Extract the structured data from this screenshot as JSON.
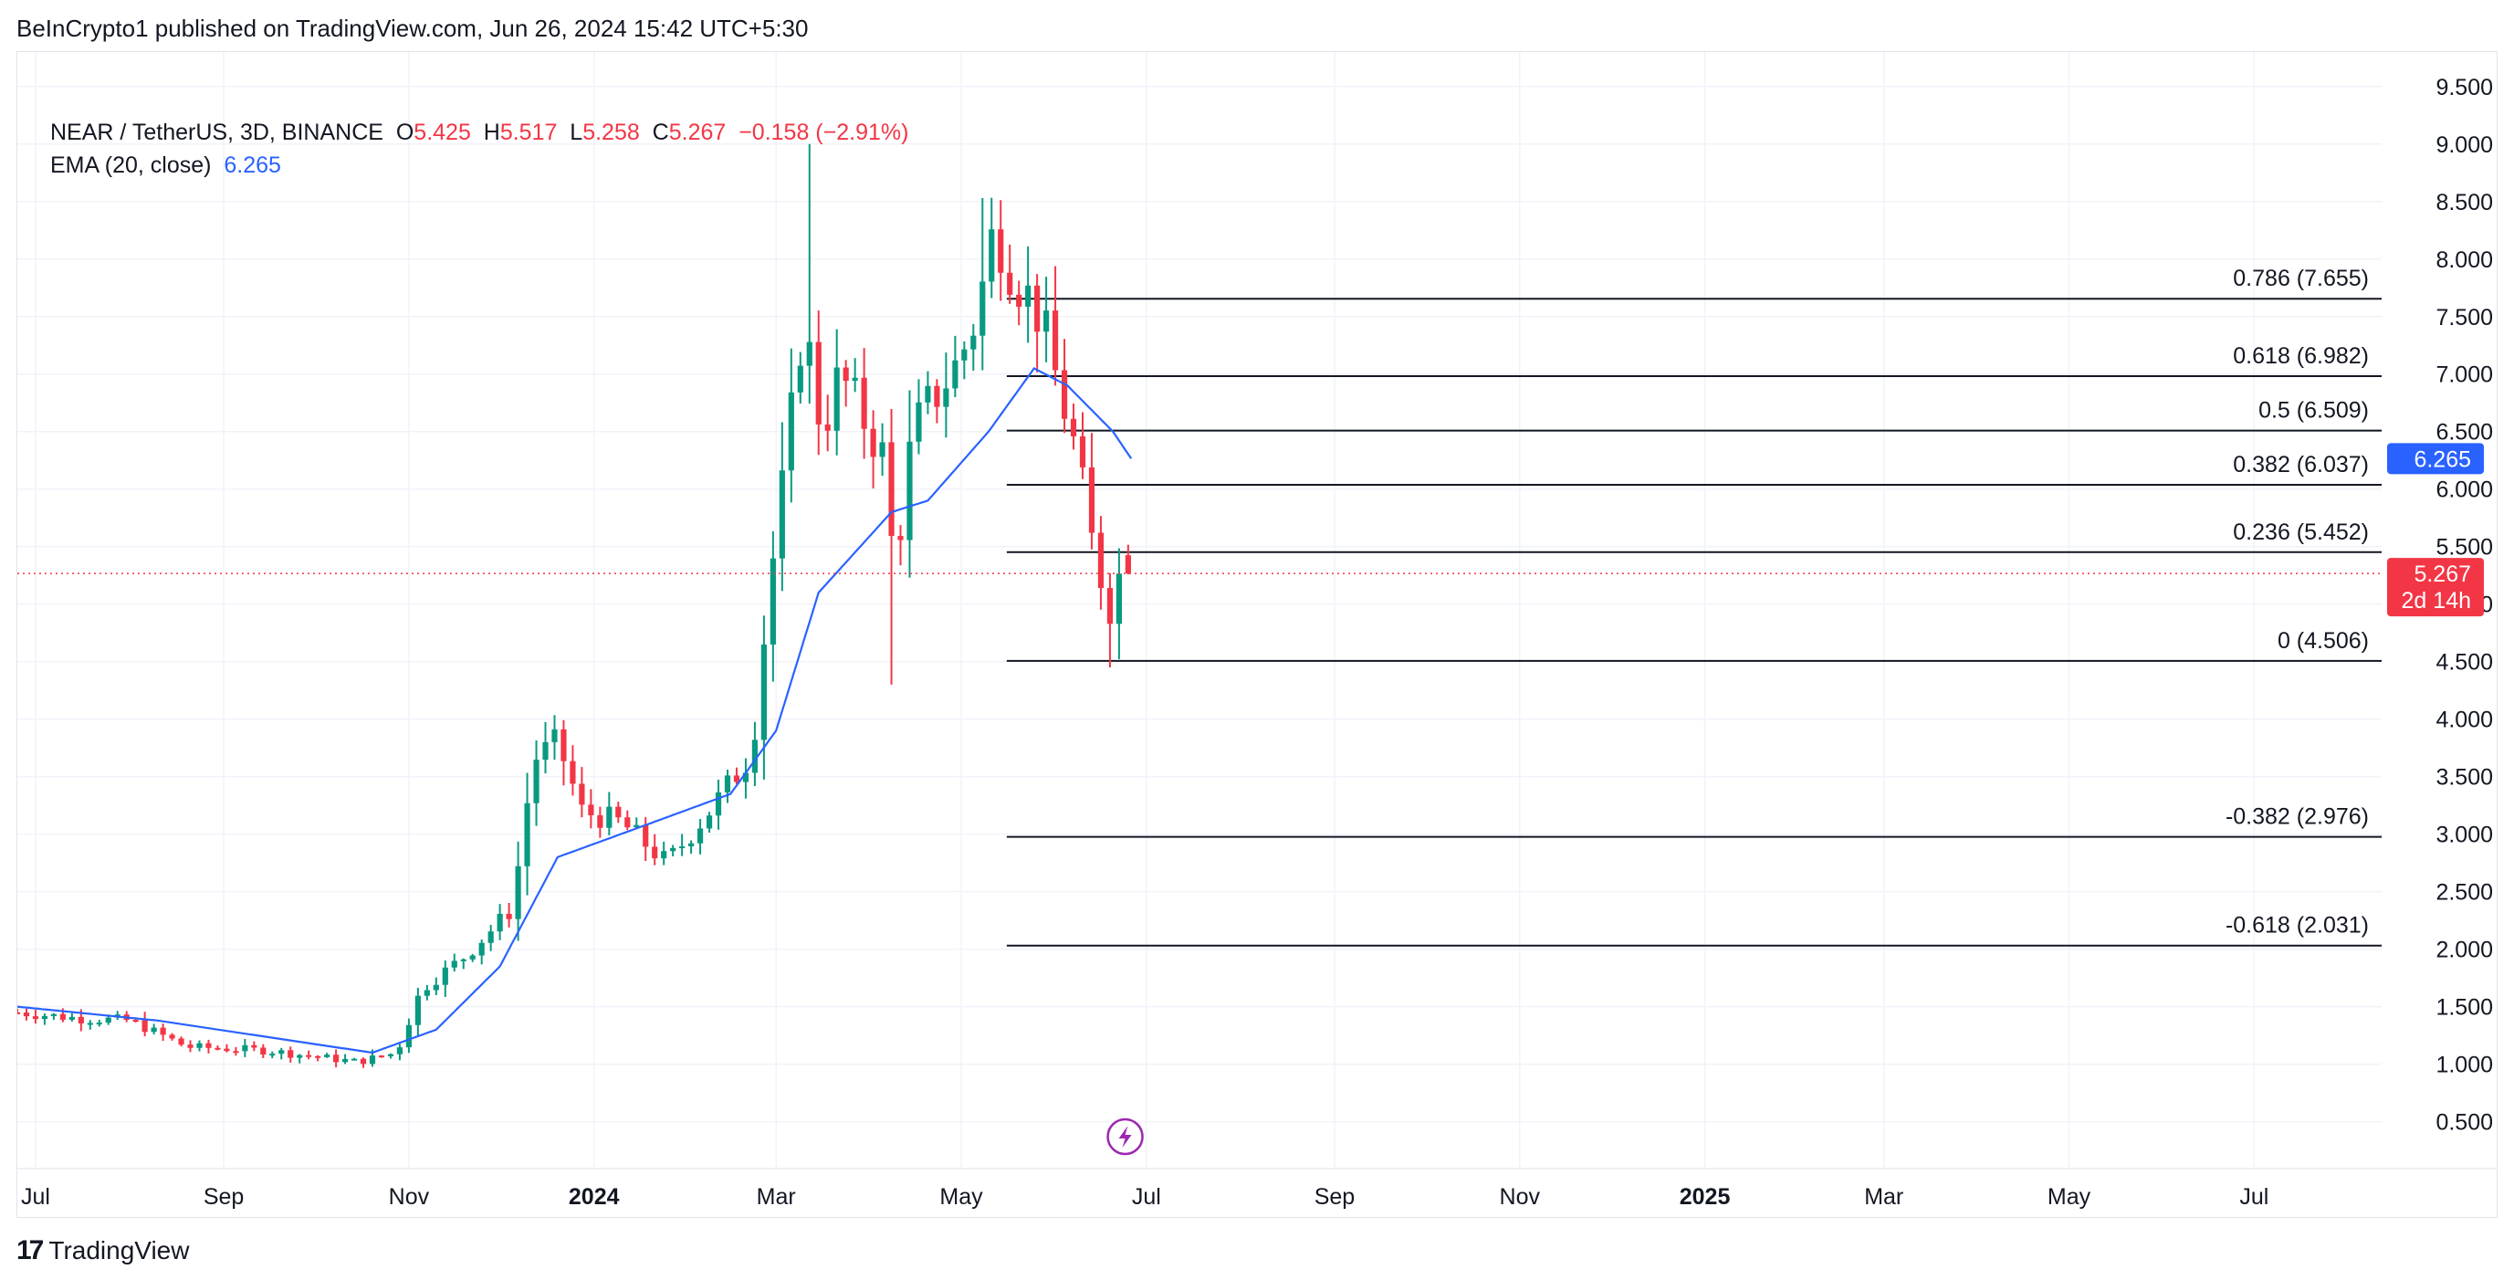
{
  "publisher_line": "BeInCrypto1 published on TradingView.com, Jun 26, 2024 15:42 UTC+5:30",
  "footer": {
    "logo_glyph": "17",
    "brand": "TradingView"
  },
  "legend": {
    "symbol": "NEAR / TetherUS, 3D, BINANCE",
    "o_label": "O",
    "o_value": "5.425",
    "h_label": "H",
    "h_value": "5.517",
    "l_label": "L",
    "l_value": "5.258",
    "c_label": "C",
    "c_value": "5.267",
    "change": "−0.158 (−2.91%)",
    "ema_label": "EMA (20, close)",
    "ema_value": "6.265"
  },
  "colors": {
    "up": "#089981",
    "down": "#f23645",
    "ema": "#2962ff",
    "fib": "#131722",
    "grid": "#f0f3fa",
    "axis_text": "#131722",
    "price_line": "#f23645",
    "event_icon": "#9c27b0"
  },
  "icons": {
    "event": "lightning-bolt-icon"
  },
  "chart_data": {
    "type": "candlestick",
    "ylim": [
      0.1,
      9.8
    ],
    "y_ticks": [
      "0.500",
      "1.000",
      "1.500",
      "2.000",
      "2.500",
      "3.000",
      "3.500",
      "4.000",
      "4.500",
      "5.000",
      "5.500",
      "6.000",
      "6.500",
      "7.000",
      "7.500",
      "8.000",
      "8.500",
      "9.000",
      "9.500"
    ],
    "x_ticks": [
      {
        "label": "Jul",
        "date": "2023-07-01",
        "bold": false
      },
      {
        "label": "Sep",
        "date": "2023-09-01",
        "bold": false
      },
      {
        "label": "Nov",
        "date": "2023-11-01",
        "bold": false
      },
      {
        "label": "2024",
        "date": "2024-01-01",
        "bold": true
      },
      {
        "label": "Mar",
        "date": "2024-03-01",
        "bold": false
      },
      {
        "label": "May",
        "date": "2024-05-01",
        "bold": false
      },
      {
        "label": "Jul",
        "date": "2024-07-01",
        "bold": false
      },
      {
        "label": "Sep",
        "date": "2024-09-01",
        "bold": false
      },
      {
        "label": "Nov",
        "date": "2024-11-01",
        "bold": false
      },
      {
        "label": "2025",
        "date": "2025-01-01",
        "bold": true
      },
      {
        "label": "Mar",
        "date": "2025-03-01",
        "bold": false
      },
      {
        "label": "May",
        "date": "2025-05-01",
        "bold": false
      },
      {
        "label": "Jul",
        "date": "2025-07-01",
        "bold": false
      }
    ],
    "x_range": [
      "2023-06-25",
      "2025-08-12"
    ],
    "candle_interval_days": 3,
    "candles_start": "2023-06-25",
    "close_anchors": [
      [
        "2023-06-25",
        1.45
      ],
      [
        "2023-07-15",
        1.4
      ],
      [
        "2023-08-01",
        1.38
      ],
      [
        "2023-08-20",
        1.15
      ],
      [
        "2023-09-15",
        1.12
      ],
      [
        "2023-10-15",
        1.02
      ],
      [
        "2023-10-28",
        1.1
      ],
      [
        "2023-11-05",
        1.65
      ],
      [
        "2023-11-20",
        1.95
      ],
      [
        "2023-12-05",
        2.35
      ],
      [
        "2023-12-12",
        3.65
      ],
      [
        "2023-12-20",
        3.8
      ],
      [
        "2023-12-28",
        3.2
      ],
      [
        "2024-01-10",
        3.1
      ],
      [
        "2024-01-25",
        2.75
      ],
      [
        "2024-02-08",
        3.2
      ],
      [
        "2024-02-22",
        3.7
      ],
      [
        "2024-02-28",
        5.2
      ],
      [
        "2024-03-04",
        6.2
      ],
      [
        "2024-03-10",
        7.5
      ],
      [
        "2024-03-16",
        6.5
      ],
      [
        "2024-03-22",
        7.0
      ],
      [
        "2024-03-28",
        6.7
      ],
      [
        "2024-04-05",
        6.3
      ],
      [
        "2024-04-09",
        5.3
      ],
      [
        "2024-04-15",
        6.5
      ],
      [
        "2024-04-22",
        6.8
      ],
      [
        "2024-04-30",
        7.1
      ],
      [
        "2024-05-06",
        7.5
      ],
      [
        "2024-05-12",
        8.3
      ],
      [
        "2024-05-18",
        7.9
      ],
      [
        "2024-05-27",
        7.5
      ],
      [
        "2024-06-02",
        6.9
      ],
      [
        "2024-06-08",
        6.3
      ],
      [
        "2024-06-14",
        5.4
      ],
      [
        "2024-06-20",
        4.9
      ],
      [
        "2024-06-23",
        5.43
      ],
      [
        "2024-06-26",
        5.267
      ]
    ],
    "highlight_wicks": [
      {
        "date": "2024-03-13",
        "high": 9.0
      },
      {
        "date": "2024-04-09",
        "low": 4.3
      },
      {
        "date": "2024-05-09",
        "high": 8.53
      },
      {
        "date": "2024-06-20",
        "low": 4.45
      }
    ],
    "last_candle": {
      "open": 5.425,
      "high": 5.517,
      "low": 5.258,
      "close": 5.267
    },
    "ema": {
      "name": "EMA (20, close)",
      "period": 20,
      "last": 6.265,
      "anchors": [
        [
          "2023-06-25",
          1.5
        ],
        [
          "2023-08-10",
          1.38
        ],
        [
          "2023-10-20",
          1.1
        ],
        [
          "2023-11-10",
          1.3
        ],
        [
          "2023-12-01",
          1.85
        ],
        [
          "2023-12-20",
          2.8
        ],
        [
          "2024-01-15",
          3.05
        ],
        [
          "2024-02-15",
          3.35
        ],
        [
          "2024-03-01",
          3.9
        ],
        [
          "2024-03-15",
          5.1
        ],
        [
          "2024-04-08",
          5.8
        ],
        [
          "2024-04-20",
          5.9
        ],
        [
          "2024-05-10",
          6.5
        ],
        [
          "2024-05-25",
          7.05
        ],
        [
          "2024-06-05",
          6.9
        ],
        [
          "2024-06-20",
          6.5
        ],
        [
          "2024-06-26",
          6.265
        ]
      ]
    },
    "fib_levels": [
      {
        "label": "0.786 (7.655)",
        "value": 7.655
      },
      {
        "label": "0.618 (6.982)",
        "value": 6.982
      },
      {
        "label": "0.5 (6.509)",
        "value": 6.509
      },
      {
        "label": "0.382 (6.037)",
        "value": 6.037
      },
      {
        "label": "0.236 (5.452)",
        "value": 5.452
      },
      {
        "label": "0 (4.506)",
        "value": 4.506
      },
      {
        "label": "-0.382 (2.976)",
        "value": 2.976
      },
      {
        "label": "-0.618 (2.031)",
        "value": 2.031
      }
    ],
    "fib_start_date": "2024-05-16",
    "current_price": {
      "value": 5.267,
      "label": "5.267",
      "countdown": "2d 14h"
    },
    "ema_badge": {
      "value": 6.265,
      "label": "6.265"
    },
    "event_date": "2024-06-24"
  }
}
